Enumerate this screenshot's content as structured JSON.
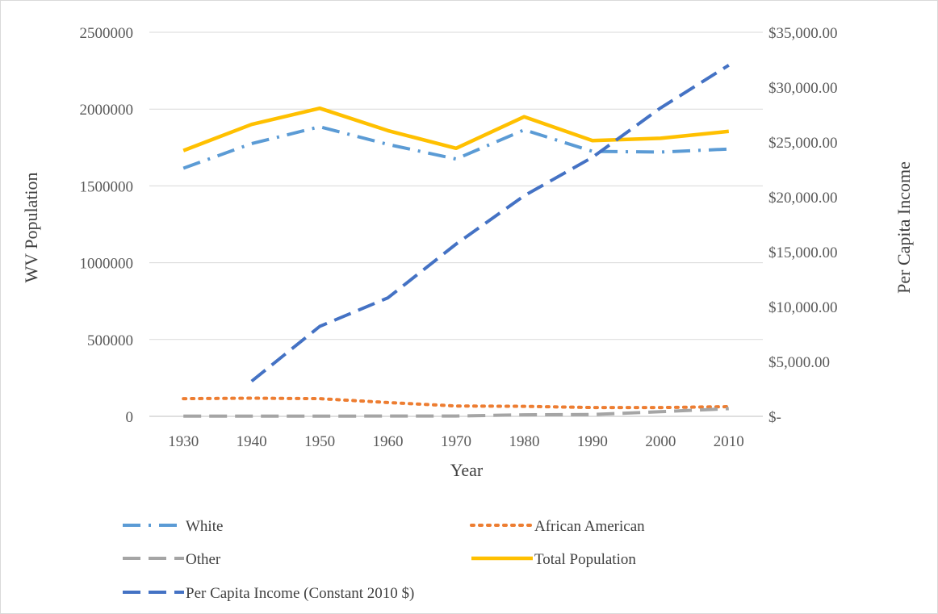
{
  "chart_data": {
    "type": "line",
    "xlabel": "Year",
    "ylabel": "WV Population",
    "y2label": "Per Capita Income",
    "categories": [
      "1930",
      "1940",
      "1950",
      "1960",
      "1970",
      "1980",
      "1990",
      "2000",
      "2010"
    ],
    "ylim": [
      0,
      2500000
    ],
    "y2lim": [
      0,
      35000
    ],
    "y_ticks": [
      "0",
      "500000",
      "1000000",
      "1500000",
      "2000000",
      "2500000"
    ],
    "y2_ticks": [
      "$-",
      "$5,000.00",
      "$10,000.00",
      "$15,000.00",
      "$20,000.00",
      "$25,000.00",
      "$30,000.00",
      "$35,000.00"
    ],
    "grid": true,
    "legend_position": "bottom",
    "series": [
      {
        "name": "White",
        "axis": "left",
        "color": "#5B9BD5",
        "dash": "dash-dot",
        "values": [
          1615000,
          1775000,
          1885000,
          1770000,
          1675000,
          1865000,
          1725000,
          1720000,
          1740000
        ]
      },
      {
        "name": "African American",
        "axis": "left",
        "color": "#ED7D31",
        "dash": "dot",
        "values": [
          115000,
          118000,
          115000,
          90000,
          67000,
          65000,
          57000,
          57000,
          63000
        ]
      },
      {
        "name": "Other",
        "axis": "left",
        "color": "#A5A5A5",
        "dash": "dash",
        "values": [
          1000,
          1000,
          1000,
          2000,
          2000,
          10000,
          12000,
          30000,
          50000
        ]
      },
      {
        "name": "Total Population",
        "axis": "left",
        "color": "#FFC000",
        "dash": "solid",
        "values": [
          1730000,
          1900000,
          2005000,
          1860000,
          1745000,
          1950000,
          1795000,
          1810000,
          1855000
        ]
      },
      {
        "name": "Per Capita Income (Constant 2010 $)",
        "axis": "right",
        "color": "#4472C4",
        "dash": "dash",
        "values": [
          null,
          3200,
          8200,
          10800,
          15700,
          20100,
          23600,
          28100,
          32000
        ]
      }
    ]
  }
}
